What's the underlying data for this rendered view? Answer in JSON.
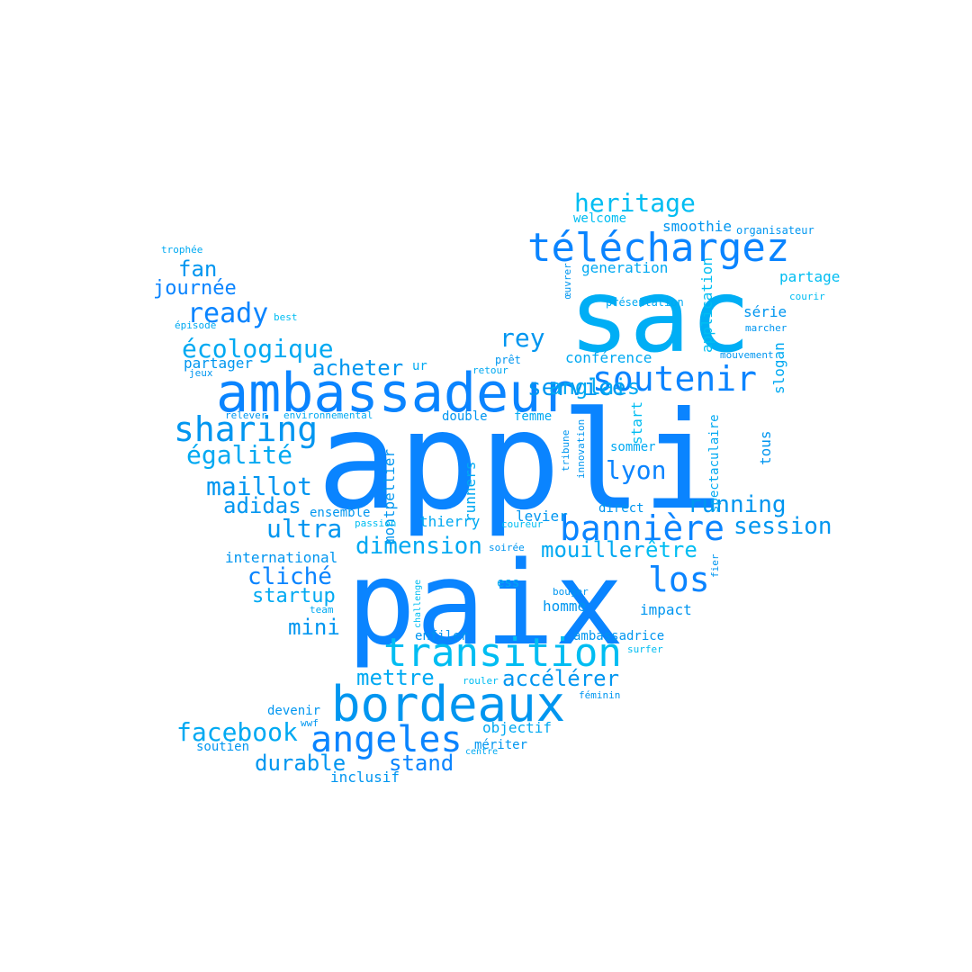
{
  "palette": [
    "#0a84ff",
    "#0096f0",
    "#00a9f2",
    "#00bdf2",
    "#1a8cf0"
  ],
  "words": [
    {
      "text": "appli",
      "color": "#0a84ff"
    },
    {
      "text": "paix",
      "color": "#0a84ff"
    },
    {
      "text": "sac",
      "color": "#00aef5"
    },
    {
      "text": "ambassadeur",
      "color": "#0a84ff"
    },
    {
      "text": "bordeaux",
      "color": "#0096f0"
    },
    {
      "text": "téléchargez",
      "color": "#0a84ff"
    },
    {
      "text": "transition",
      "color": "#00bdf2"
    },
    {
      "text": "angeles",
      "color": "#0a84ff"
    },
    {
      "text": "soutenir",
      "color": "#0a84ff"
    },
    {
      "text": "sharing",
      "color": "#0096f0"
    },
    {
      "text": "bannière",
      "color": "#0a84ff"
    },
    {
      "text": "heritage",
      "color": "#00bdf2"
    },
    {
      "text": "los",
      "color": "#0a84ff"
    },
    {
      "text": "session",
      "color": "#0096f0"
    },
    {
      "text": "maillot",
      "color": "#0096f0"
    },
    {
      "text": "écologique",
      "color": "#00a9f2"
    },
    {
      "text": "égalité",
      "color": "#00a9f2"
    },
    {
      "text": "facebook",
      "color": "#00a9f2"
    },
    {
      "text": "dimension",
      "color": "#00a9f2"
    },
    {
      "text": "ready",
      "color": "#0a84ff"
    },
    {
      "text": "service",
      "color": "#0096f0"
    },
    {
      "text": "rey",
      "color": "#0096f0"
    },
    {
      "text": "ultra",
      "color": "#0096f0"
    },
    {
      "text": "lyon",
      "color": "#0a84ff"
    },
    {
      "text": "running",
      "color": "#0096f0"
    },
    {
      "text": "cliché",
      "color": "#0a84ff"
    },
    {
      "text": "durable",
      "color": "#0096f0"
    },
    {
      "text": "stand",
      "color": "#0a84ff"
    },
    {
      "text": "accélérer",
      "color": "#0096f0"
    },
    {
      "text": "mettre",
      "color": "#00a9f2"
    },
    {
      "text": "adidas",
      "color": "#0096f0"
    },
    {
      "text": "acheter",
      "color": "#0096f0"
    },
    {
      "text": "anglais",
      "color": "#00a9f2"
    },
    {
      "text": "mouiller",
      "color": "#00a9f2"
    },
    {
      "text": "être",
      "color": "#00bdf2"
    },
    {
      "text": "startup",
      "color": "#00a9f2"
    },
    {
      "text": "fan",
      "color": "#0096f0"
    },
    {
      "text": "journée",
      "color": "#0a84ff"
    },
    {
      "text": "mini",
      "color": "#0096f0"
    },
    {
      "text": "montpellier",
      "color": "#0096f0"
    },
    {
      "text": "runners",
      "color": "#00a9f2"
    },
    {
      "text": "spectaculaire",
      "color": "#00a9f2"
    },
    {
      "text": "application",
      "color": "#00bdf2"
    },
    {
      "text": "slogan",
      "color": "#00a9f2"
    },
    {
      "text": "start",
      "color": "#00bdf2"
    },
    {
      "text": "tous",
      "color": "#0096f0"
    },
    {
      "text": "conférence",
      "color": "#00a9f2"
    },
    {
      "text": "partager",
      "color": "#0096f0"
    },
    {
      "text": "smoothie",
      "color": "#0096f0"
    },
    {
      "text": "generation",
      "color": "#00a9f2"
    },
    {
      "text": "partage",
      "color": "#00bdf2"
    },
    {
      "text": "welcome",
      "color": "#00bdf2"
    },
    {
      "text": "série",
      "color": "#0096f0"
    },
    {
      "text": "double",
      "color": "#0096f0"
    },
    {
      "text": "femme",
      "color": "#00a9f2"
    },
    {
      "text": "thierry",
      "color": "#00a9f2"
    },
    {
      "text": "levier",
      "color": "#0096f0"
    },
    {
      "text": "direct",
      "color": "#0096f0"
    },
    {
      "text": "ensemble",
      "color": "#0096f0"
    },
    {
      "text": "international",
      "color": "#0096f0"
    },
    {
      "text": "impact",
      "color": "#0096f0"
    },
    {
      "text": "homme",
      "color": "#0096f0"
    },
    {
      "text": "ess",
      "color": "#00a9f2"
    },
    {
      "text": "enfiler",
      "color": "#0096f0"
    },
    {
      "text": "ambassadrice",
      "color": "#0096f0"
    },
    {
      "text": "devenir",
      "color": "#0096f0"
    },
    {
      "text": "objectif",
      "color": "#00a9f2"
    },
    {
      "text": "soutien",
      "color": "#0096f0"
    },
    {
      "text": "mériter",
      "color": "#0096f0"
    },
    {
      "text": "inclusif",
      "color": "#0096f0"
    },
    {
      "text": "sommer",
      "color": "#00a9f2"
    },
    {
      "text": "organisateur",
      "color": "#0096f0"
    },
    {
      "text": "présentation",
      "color": "#00a9f2"
    },
    {
      "text": "courir",
      "color": "#00bdf2"
    },
    {
      "text": "marcher",
      "color": "#0096f0"
    },
    {
      "text": "mouvement",
      "color": "#0096f0"
    },
    {
      "text": "prêt",
      "color": "#0096f0"
    },
    {
      "text": "ur",
      "color": "#00a9f2"
    },
    {
      "text": "retour",
      "color": "#00a9f2"
    },
    {
      "text": "jeux",
      "color": "#0096f0"
    },
    {
      "text": "relever",
      "color": "#0096f0"
    },
    {
      "text": "environnemental",
      "color": "#00a9f2"
    },
    {
      "text": "trophée",
      "color": "#00a9f2"
    },
    {
      "text": "best",
      "color": "#00bdf2"
    },
    {
      "text": "épisode",
      "color": "#00a9f2"
    },
    {
      "text": "passion",
      "color": "#00bdf2"
    },
    {
      "text": "coureur",
      "color": "#00bdf2"
    },
    {
      "text": "soirée",
      "color": "#0096f0"
    },
    {
      "text": "tribune",
      "color": "#0096f0"
    },
    {
      "text": "innovation",
      "color": "#0096f0"
    },
    {
      "text": "œuvrer",
      "color": "#0096f0"
    },
    {
      "text": "fier",
      "color": "#0096f0"
    },
    {
      "text": "bouger",
      "color": "#0096f0"
    },
    {
      "text": "challenge",
      "color": "#00bdf2"
    },
    {
      "text": "team",
      "color": "#00a9f2"
    },
    {
      "text": "surfer",
      "color": "#00bdf2"
    },
    {
      "text": "rouler",
      "color": "#00bdf2"
    },
    {
      "text": "féminin",
      "color": "#0096f0"
    },
    {
      "text": "wwf",
      "color": "#0096f0"
    },
    {
      "text": "centre",
      "color": "#00a9f2"
    }
  ]
}
